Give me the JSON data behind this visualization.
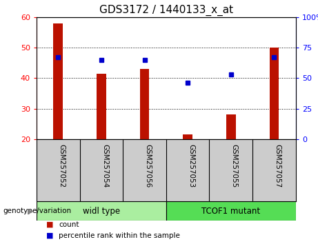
{
  "title": "GDS3172 / 1440133_x_at",
  "categories": [
    "GSM257052",
    "GSM257054",
    "GSM257056",
    "GSM257053",
    "GSM257055",
    "GSM257057"
  ],
  "bar_values": [
    58,
    41.5,
    43,
    21.5,
    28,
    50
  ],
  "bar_base": 20,
  "percentile_values": [
    67,
    65,
    65,
    46,
    53,
    67
  ],
  "ylim_left": [
    20,
    60
  ],
  "ylim_right": [
    0,
    100
  ],
  "yticks_left": [
    20,
    30,
    40,
    50,
    60
  ],
  "yticks_right": [
    0,
    25,
    50,
    75,
    100
  ],
  "bar_color": "#bb1100",
  "dot_color": "#0000cc",
  "group1_label": "widl type",
  "group2_label": "TCOF1 mutant",
  "group1_color": "#aaeea0",
  "group2_color": "#55dd55",
  "group1_indices": [
    0,
    1,
    2
  ],
  "group2_indices": [
    3,
    4,
    5
  ],
  "legend_count_label": "count",
  "legend_pct_label": "percentile rank within the sample",
  "genotype_label": "genotype/variation",
  "tick_label_area_color": "#cccccc",
  "plot_bg_color": "#ffffff",
  "title_fontsize": 11,
  "axis_fontsize": 8,
  "label_fontsize": 8
}
